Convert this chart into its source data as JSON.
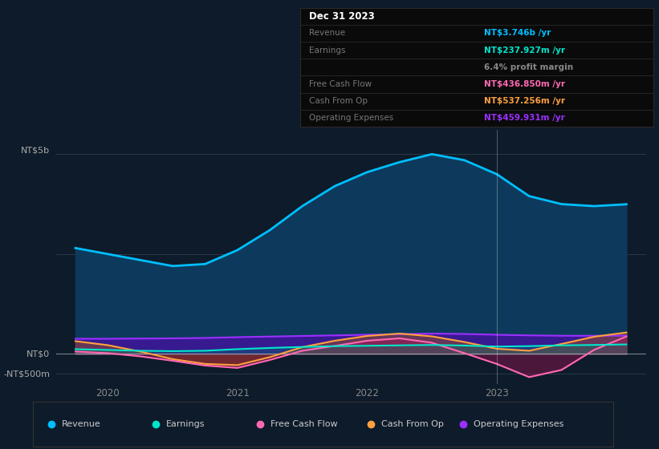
{
  "bg_color": "#0d1b2a",
  "revenue_color": "#00bfff",
  "revenue_fill": "#0d3a5c",
  "earnings_color": "#00e5cc",
  "freecf_color": "#ff69b4",
  "cashfromop_color": "#ffa040",
  "opex_color": "#9b30ff",
  "legend_items": [
    {
      "label": "Revenue",
      "color": "#00bfff"
    },
    {
      "label": "Earnings",
      "color": "#00e5cc"
    },
    {
      "label": "Free Cash Flow",
      "color": "#ff69b4"
    },
    {
      "label": "Cash From Op",
      "color": "#ffa040"
    },
    {
      "label": "Operating Expenses",
      "color": "#9b30ff"
    }
  ],
  "t": [
    2019.75,
    2020.0,
    2020.25,
    2020.5,
    2020.75,
    2021.0,
    2021.25,
    2021.5,
    2021.75,
    2022.0,
    2022.25,
    2022.5,
    2022.75,
    2023.0,
    2023.25,
    2023.5,
    2023.75,
    2024.0
  ],
  "revenue": [
    2650000000.0,
    2500000000.0,
    2350000000.0,
    2200000000.0,
    2250000000.0,
    2600000000.0,
    3100000000.0,
    3700000000.0,
    4200000000.0,
    4550000000.0,
    4800000000.0,
    5000000000.0,
    4850000000.0,
    4500000000.0,
    3950000000.0,
    3750000000.0,
    3700000000.0,
    3746000000.0
  ],
  "earnings": [
    120000000.0,
    100000000.0,
    80000000.0,
    70000000.0,
    80000000.0,
    120000000.0,
    150000000.0,
    175000000.0,
    195000000.0,
    205000000.0,
    215000000.0,
    225000000.0,
    210000000.0,
    185000000.0,
    195000000.0,
    215000000.0,
    225000000.0,
    238000000.0
  ],
  "freecf": [
    60000000.0,
    20000000.0,
    -60000000.0,
    -170000000.0,
    -290000000.0,
    -350000000.0,
    -150000000.0,
    80000000.0,
    200000000.0,
    330000000.0,
    390000000.0,
    280000000.0,
    20000000.0,
    -250000000.0,
    -580000000.0,
    -400000000.0,
    100000000.0,
    437000000.0
  ],
  "cashfromop": [
    320000000.0,
    220000000.0,
    60000000.0,
    -130000000.0,
    -250000000.0,
    -280000000.0,
    -80000000.0,
    170000000.0,
    330000000.0,
    450000000.0,
    510000000.0,
    440000000.0,
    300000000.0,
    130000000.0,
    80000000.0,
    250000000.0,
    430000000.0,
    537000000.0
  ],
  "opex": [
    380000000.0,
    380000000.0,
    385000000.0,
    390000000.0,
    400000000.0,
    420000000.0,
    435000000.0,
    450000000.0,
    465000000.0,
    480000000.0,
    495000000.0,
    510000000.0,
    500000000.0,
    480000000.0,
    465000000.0,
    455000000.0,
    455000000.0,
    460000000.0
  ],
  "xlim": [
    2019.6,
    2024.15
  ],
  "ylim_lo": -750000000,
  "ylim_hi": 5600000000,
  "y_nt5b": 5000000000,
  "y_nt0": 0,
  "y_ntm500": -500000000,
  "y_nt2500": 2500000000
}
